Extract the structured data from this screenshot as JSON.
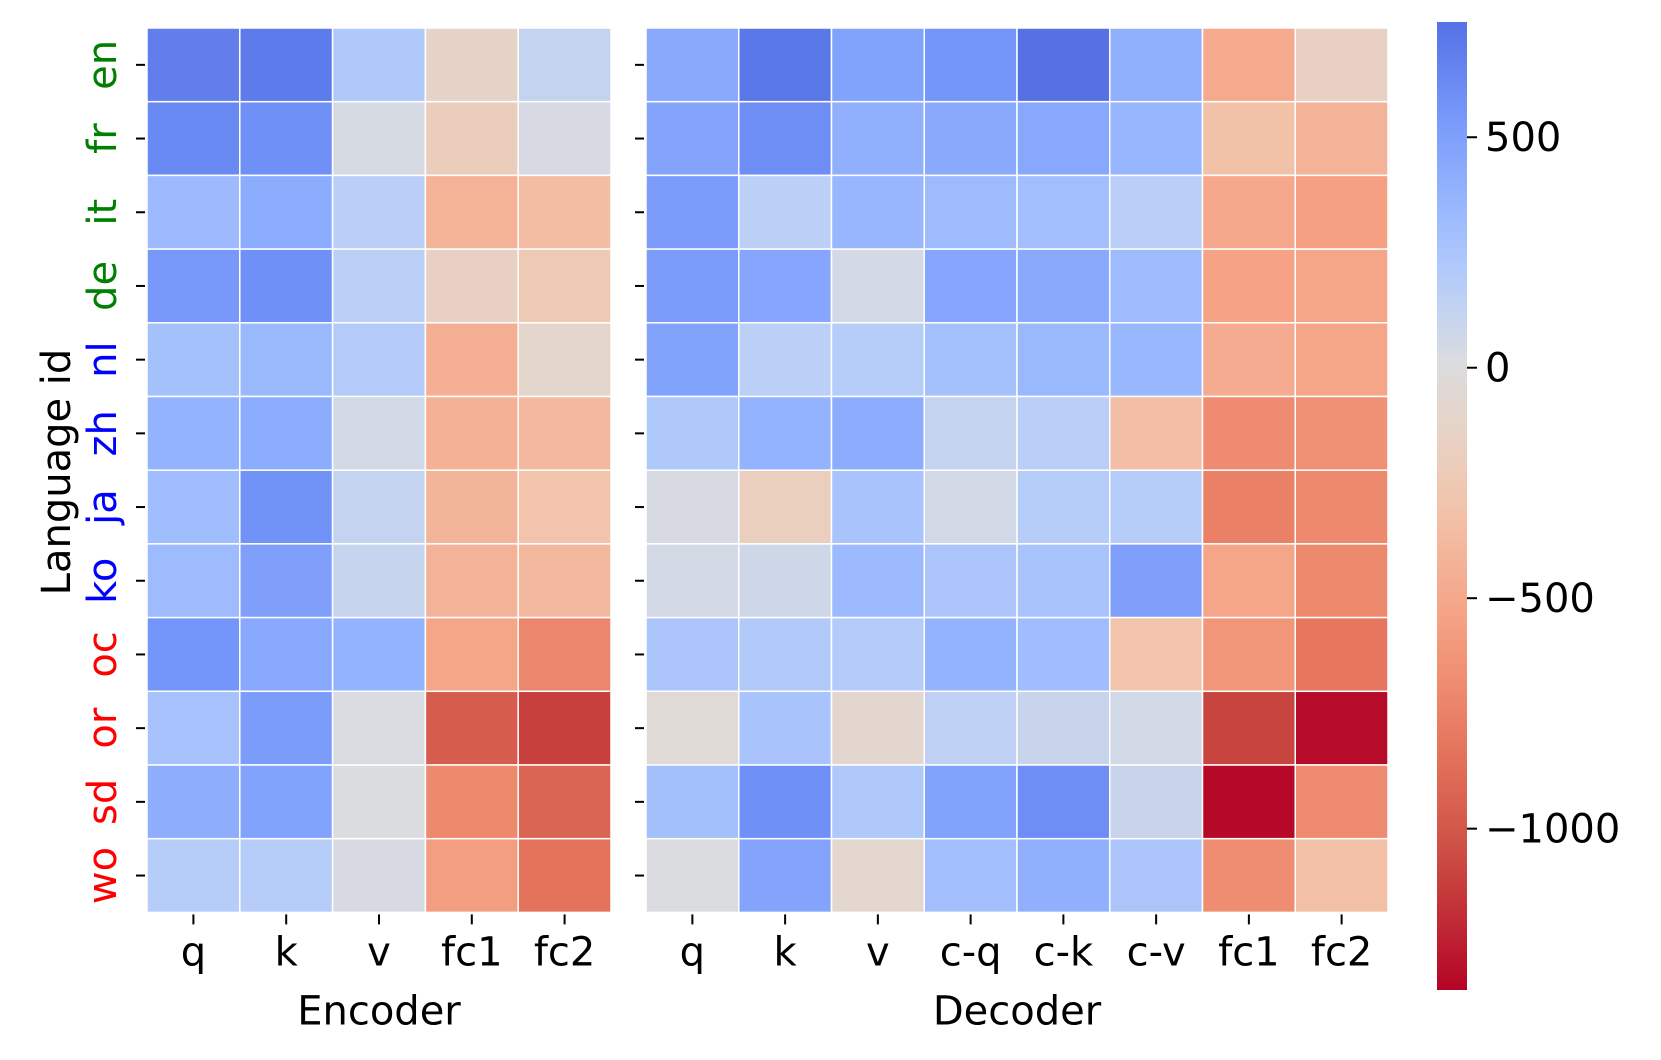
{
  "chart_data": {
    "type": "heatmap",
    "ylabel": "Language id",
    "languages": [
      {
        "id": "en",
        "color": "#008000"
      },
      {
        "id": "fr",
        "color": "#008000"
      },
      {
        "id": "it",
        "color": "#008000"
      },
      {
        "id": "de",
        "color": "#008000"
      },
      {
        "id": "nl",
        "color": "#0000ff"
      },
      {
        "id": "zh",
        "color": "#0000ff"
      },
      {
        "id": "ja",
        "color": "#0000ff"
      },
      {
        "id": "ko",
        "color": "#0000ff"
      },
      {
        "id": "oc",
        "color": "#ff0000"
      },
      {
        "id": "or",
        "color": "#ff0000"
      },
      {
        "id": "sd",
        "color": "#ff0000"
      },
      {
        "id": "wo",
        "color": "#ff0000"
      }
    ],
    "colorbar": {
      "colormap": "coolwarm_r",
      "vmin": -1350,
      "vmax": 750,
      "ticks": [
        500,
        0,
        -500,
        -1000
      ],
      "tick_labels": [
        "500",
        "0",
        "−500",
        "−1000"
      ]
    },
    "panels": [
      {
        "name": "encoder",
        "xlabel": "Encoder",
        "columns": [
          "q",
          "k",
          "v",
          "fc1",
          "fc2"
        ],
        "values": [
          [
            680,
            700,
            220,
            -130,
            120
          ],
          [
            620,
            590,
            40,
            -200,
            30
          ],
          [
            330,
            420,
            170,
            -430,
            -350
          ],
          [
            540,
            590,
            160,
            -150,
            -240
          ],
          [
            280,
            340,
            200,
            -450,
            -100
          ],
          [
            380,
            420,
            60,
            -440,
            -380
          ],
          [
            310,
            580,
            120,
            -410,
            -300
          ],
          [
            320,
            500,
            110,
            -420,
            -380
          ],
          [
            560,
            450,
            380,
            -520,
            -720
          ],
          [
            270,
            520,
            20,
            -970,
            -1120
          ],
          [
            410,
            480,
            10,
            -700,
            -920
          ],
          [
            190,
            190,
            30,
            -570,
            -840
          ]
        ]
      },
      {
        "name": "decoder",
        "xlabel": "Decoder",
        "columns": [
          "q",
          "k",
          "v",
          "c-q",
          "c-k",
          "c-v",
          "fc1",
          "fc2"
        ],
        "values": [
          [
            440,
            720,
            480,
            560,
            750,
            400,
            -490,
            -160
          ],
          [
            470,
            600,
            400,
            440,
            450,
            360,
            -320,
            -420
          ],
          [
            520,
            160,
            360,
            320,
            300,
            170,
            -500,
            -560
          ],
          [
            520,
            460,
            50,
            460,
            440,
            320,
            -540,
            -520
          ],
          [
            480,
            160,
            190,
            280,
            340,
            350,
            -480,
            -520
          ],
          [
            220,
            380,
            420,
            120,
            170,
            -340,
            -690,
            -650
          ],
          [
            30,
            -180,
            260,
            60,
            190,
            190,
            -760,
            -700
          ],
          [
            50,
            70,
            330,
            240,
            260,
            500,
            -520,
            -700
          ],
          [
            240,
            210,
            200,
            380,
            310,
            -300,
            -620,
            -820
          ],
          [
            -40,
            260,
            -90,
            150,
            100,
            60,
            -1100,
            -1320
          ],
          [
            290,
            590,
            220,
            480,
            600,
            100,
            -1330,
            -690
          ],
          [
            10,
            470,
            -80,
            300,
            400,
            250,
            -680,
            -330
          ]
        ]
      }
    ]
  }
}
